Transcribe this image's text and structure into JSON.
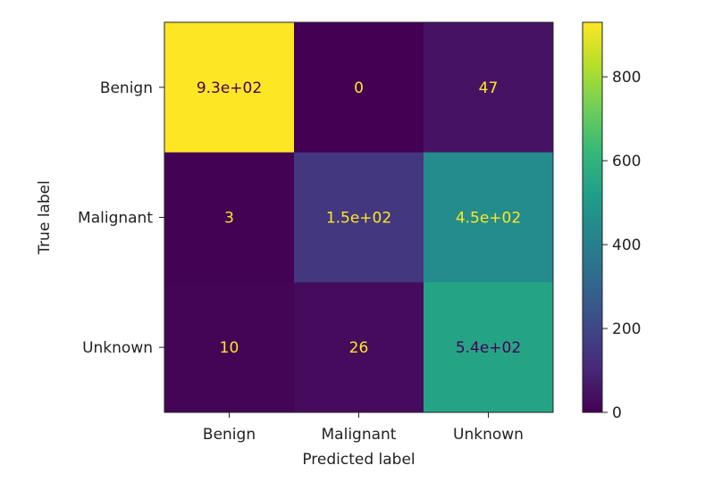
{
  "chart_data": {
    "type": "heatmap",
    "title": "",
    "xlabel": "Predicted label",
    "ylabel": "True label",
    "x_categories": [
      "Benign",
      "Malignant",
      "Unknown"
    ],
    "y_categories": [
      "Benign",
      "Malignant",
      "Unknown"
    ],
    "matrix": [
      [
        930,
        0,
        47
      ],
      [
        3,
        150,
        450
      ],
      [
        10,
        26,
        540
      ]
    ],
    "cell_labels": [
      [
        "9.3e+02",
        "0",
        "47"
      ],
      [
        "3",
        "1.5e+02",
        "4.5e+02"
      ],
      [
        "10",
        "26",
        "5.4e+02"
      ]
    ],
    "colormap": "viridis",
    "colorbar": {
      "range": [
        0,
        930
      ],
      "ticks": [
        0,
        200,
        400,
        600,
        800
      ],
      "tick_labels": [
        "0",
        "200",
        "400",
        "600",
        "800"
      ]
    },
    "text_colors": {
      "on_dark": "#fde725",
      "on_light": "#440154"
    },
    "grid": false
  }
}
